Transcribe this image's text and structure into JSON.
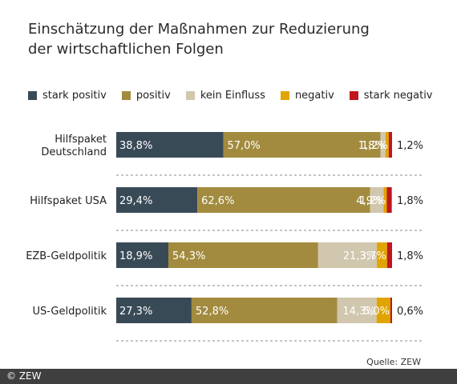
{
  "chart_data": {
    "type": "bar",
    "orientation": "horizontal",
    "stacked": true,
    "title": "Einschätzung der Maßnahmen zur Reduzierung der wirtschaftlichen Folgen",
    "title_lines": [
      "Einschätzung der Maßnahmen zur Reduzierung",
      "der wirtschaftlichen Folgen"
    ],
    "legend_position": "top",
    "categories": [
      {
        "label_lines": [
          "Hilfspaket",
          "Deutschland"
        ]
      },
      {
        "label_lines": [
          "Hilfspaket USA"
        ]
      },
      {
        "label_lines": [
          "EZB-Geldpolitik"
        ]
      },
      {
        "label_lines": [
          "US-Geldpolitik"
        ]
      }
    ],
    "series": [
      {
        "name": "stark positiv",
        "color": "#394a57",
        "values": [
          38.8,
          29.4,
          18.9,
          27.3
        ],
        "labels": [
          "38,8%",
          "29,4%",
          "18,9%",
          "27,3%"
        ]
      },
      {
        "name": "positiv",
        "color": "#a28b3f",
        "values": [
          57.0,
          62.6,
          54.3,
          52.8
        ],
        "labels": [
          "57,0%",
          "62,6%",
          "54,3%",
          "52,8%"
        ]
      },
      {
        "name": "kein Einfluss",
        "color": "#d1c6ae",
        "values": [
          1.8,
          4.9,
          21.3,
          14.3
        ],
        "labels": [
          "1,8%",
          "4,9%",
          "21,3%",
          "14,3%"
        ]
      },
      {
        "name": "negativ",
        "color": "#e0a400",
        "values": [
          1.2,
          1.2,
          3.7,
          5.0
        ],
        "labels": [
          "1,2%",
          "1,2%",
          "3,7%",
          "5,0%"
        ]
      },
      {
        "name": "stark negativ",
        "color": "#c0161c",
        "values": [
          1.2,
          1.8,
          1.8,
          0.6
        ],
        "labels": [
          "1,2%",
          "1,8%",
          "1,8%",
          "0,6%"
        ]
      }
    ],
    "xlim": [
      0,
      100
    ],
    "grid": false
  },
  "source": "Quelle: ZEW",
  "footer": "© ZEW"
}
